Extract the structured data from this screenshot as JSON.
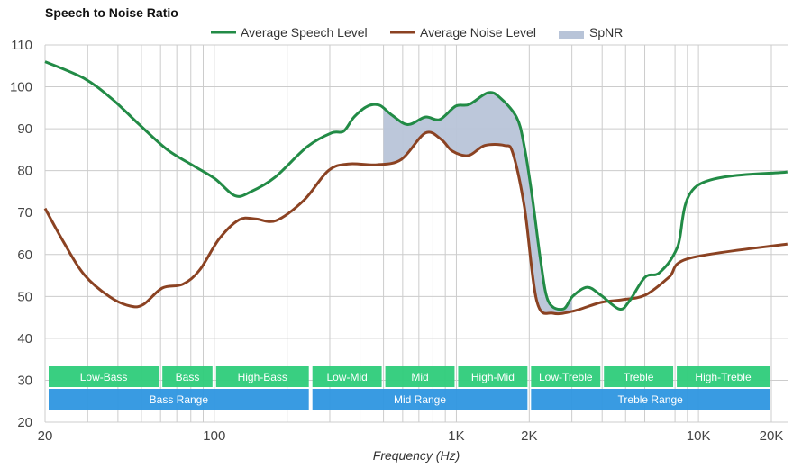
{
  "chart_data": {
    "type": "line",
    "title": "Speech to Noise Ratio",
    "xlabel": "Frequency (Hz)",
    "ylabel": "",
    "xscale": "log",
    "xlim": [
      20,
      23300
    ],
    "ylim": [
      20,
      110
    ],
    "grid": true,
    "legend_position": "top",
    "yticks": [
      20,
      30,
      40,
      50,
      60,
      70,
      80,
      90,
      100,
      110
    ],
    "xticks": [
      {
        "value": 20,
        "label": "20"
      },
      {
        "value": 100,
        "label": "100"
      },
      {
        "value": 1000,
        "label": "1K"
      },
      {
        "value": 2000,
        "label": "2K"
      },
      {
        "value": 10000,
        "label": "10K"
      },
      {
        "value": 20000,
        "label": "20K"
      }
    ],
    "x_gridlines": [
      20,
      30,
      40,
      50,
      60,
      70,
      80,
      90,
      100,
      200,
      300,
      400,
      500,
      600,
      700,
      800,
      900,
      1000,
      2000,
      3000,
      4000,
      5000,
      6000,
      7000,
      8000,
      9000,
      10000,
      20000
    ],
    "series": [
      {
        "name": "Average Speech Level",
        "color": "#228b46",
        "points": [
          [
            20,
            106
          ],
          [
            29,
            102
          ],
          [
            38,
            97
          ],
          [
            49,
            91
          ],
          [
            64,
            85
          ],
          [
            83,
            81
          ],
          [
            101,
            78
          ],
          [
            122,
            74
          ],
          [
            142,
            75
          ],
          [
            178,
            78.4
          ],
          [
            242,
            85.7
          ],
          [
            305,
            89
          ],
          [
            342,
            89.4
          ],
          [
            378,
            92.8
          ],
          [
            430,
            95.4
          ],
          [
            482,
            95.6
          ],
          [
            540,
            93.3
          ],
          [
            630,
            91
          ],
          [
            744,
            92.8
          ],
          [
            853,
            92.2
          ],
          [
            993,
            95.4
          ],
          [
            1130,
            95.8
          ],
          [
            1350,
            98.6
          ],
          [
            1510,
            97.5
          ],
          [
            1770,
            92.8
          ],
          [
            1900,
            86.4
          ],
          [
            2060,
            73.5
          ],
          [
            2230,
            58.4
          ],
          [
            2400,
            48.8
          ],
          [
            2760,
            47
          ],
          [
            3020,
            50
          ],
          [
            3470,
            52.2
          ],
          [
            3950,
            50.3
          ],
          [
            4710,
            47
          ],
          [
            5170,
            48.8
          ],
          [
            6020,
            54.6
          ],
          [
            6910,
            55.7
          ],
          [
            8180,
            61.7
          ],
          [
            9920,
            76.5
          ],
          [
            23300,
            79.7
          ]
        ]
      },
      {
        "name": "Average Noise Level",
        "color": "#8b4222",
        "points": [
          [
            20,
            71
          ],
          [
            24,
            62.7
          ],
          [
            29,
            55.2
          ],
          [
            37,
            49.9
          ],
          [
            45,
            47.7
          ],
          [
            51,
            48.1
          ],
          [
            61,
            52
          ],
          [
            74,
            52.9
          ],
          [
            87,
            56.3
          ],
          [
            105,
            63.8
          ],
          [
            127,
            68.3
          ],
          [
            148,
            68.5
          ],
          [
            180,
            68.1
          ],
          [
            235,
            73
          ],
          [
            296,
            80
          ],
          [
            359,
            81.6
          ],
          [
            470,
            81.4
          ],
          [
            593,
            82.7
          ],
          [
            744,
            89
          ],
          [
            868,
            87.4
          ],
          [
            961,
            84.7
          ],
          [
            1120,
            83.6
          ],
          [
            1310,
            86
          ],
          [
            1580,
            86
          ],
          [
            1710,
            84.2
          ],
          [
            1910,
            71.3
          ],
          [
            2150,
            48.8
          ],
          [
            2510,
            46
          ],
          [
            3040,
            46.5
          ],
          [
            3970,
            48.6
          ],
          [
            4810,
            49.2
          ],
          [
            6020,
            50.3
          ],
          [
            7560,
            54.6
          ],
          [
            9160,
            59.1
          ],
          [
            23300,
            62.5
          ]
        ]
      }
    ],
    "spnr": {
      "name": "SpNR",
      "color": "#b8c4d8",
      "from": 500,
      "to": 3000
    },
    "bands": [
      {
        "label": "Low-Bass",
        "from": 20,
        "to": 60
      },
      {
        "label": "Bass",
        "from": 60,
        "to": 100
      },
      {
        "label": "High-Bass",
        "from": 100,
        "to": 250
      },
      {
        "label": "Low-Mid",
        "from": 250,
        "to": 500
      },
      {
        "label": "Mid",
        "from": 500,
        "to": 1000
      },
      {
        "label": "High-Mid",
        "from": 1000,
        "to": 2000
      },
      {
        "label": "Low-Treble",
        "from": 2000,
        "to": 4000
      },
      {
        "label": "Treble",
        "from": 4000,
        "to": 8000
      },
      {
        "label": "High-Treble",
        "from": 8000,
        "to": 20000
      }
    ],
    "ranges": [
      {
        "label": "Bass Range",
        "from": 20,
        "to": 250
      },
      {
        "label": "Mid Range",
        "from": 250,
        "to": 2000
      },
      {
        "label": "Treble Range",
        "from": 2000,
        "to": 20000
      }
    ],
    "band_color": "#2ecc7a",
    "range_color": "#2e96e0"
  }
}
